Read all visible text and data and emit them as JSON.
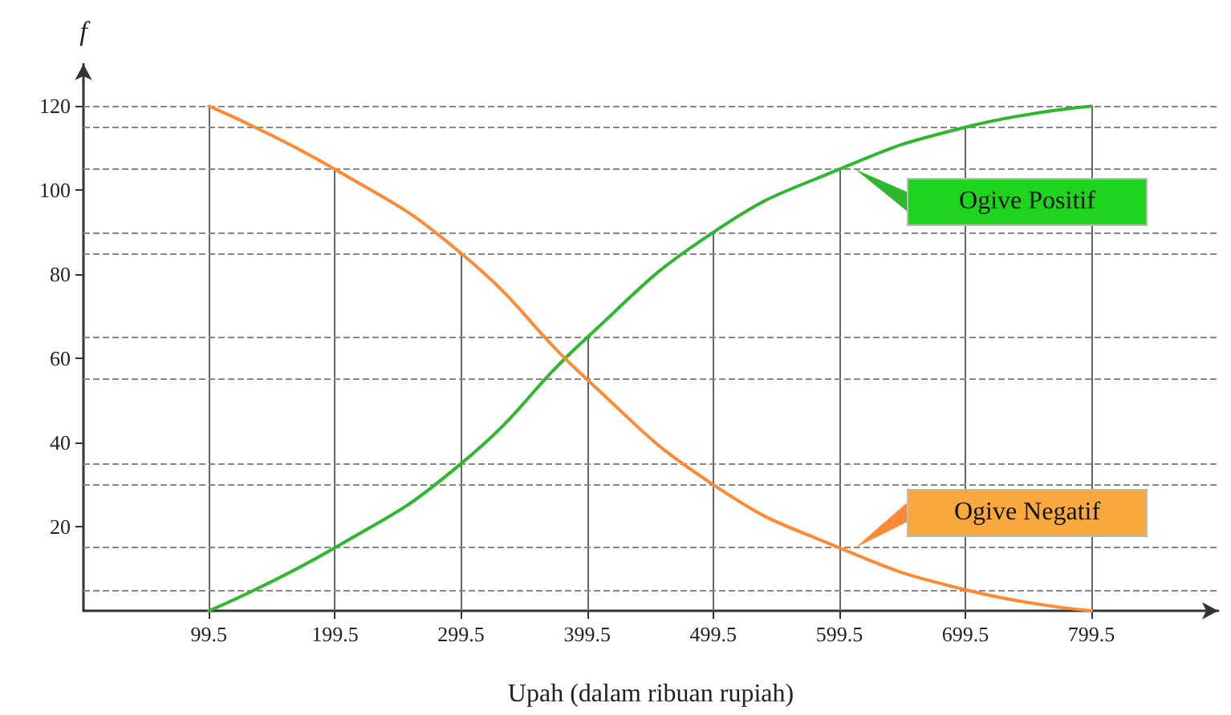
{
  "chart_data": {
    "type": "line",
    "xlabel": "Upah (dalam ribuan rupiah)",
    "ylabel": "f",
    "x": [
      99.5,
      199.5,
      299.5,
      399.5,
      499.5,
      599.5,
      699.5,
      799.5
    ],
    "series": [
      {
        "name": "Ogive Positif",
        "color": "#2eb82e",
        "values": [
          0,
          15,
          35,
          65,
          90,
          105,
          115,
          120
        ]
      },
      {
        "name": "Ogive Negatif",
        "color": "#ff8a33",
        "values": [
          120,
          105,
          85,
          55,
          30,
          15,
          5,
          0
        ]
      }
    ],
    "xlim": [
      0,
      900
    ],
    "xticks": [
      99.5,
      199.5,
      299.5,
      399.5,
      499.5,
      599.5,
      699.5,
      799.5
    ],
    "ylim": [
      0,
      130
    ],
    "yticks": [
      20,
      40,
      60,
      80,
      100,
      120
    ],
    "ref_lines": [
      {
        "axis": "x",
        "value": 99.5,
        "color": "#666666"
      },
      {
        "axis": "x",
        "value": 199.5,
        "color": "#666666"
      },
      {
        "axis": "x",
        "value": 299.5,
        "color": "#666666"
      },
      {
        "axis": "x",
        "value": 399.5,
        "color": "#666666"
      },
      {
        "axis": "x",
        "value": 499.5,
        "color": "#666666"
      },
      {
        "axis": "x",
        "value": 599.5,
        "color": "#666666"
      },
      {
        "axis": "x",
        "value": 699.5,
        "color": "#666666"
      },
      {
        "axis": "x",
        "value": 799.5,
        "color": "#666666"
      },
      {
        "axis": "y",
        "value": 5,
        "line_style": "dashed",
        "color": "#888888"
      },
      {
        "axis": "y",
        "value": 15,
        "line_style": "dashed",
        "color": "#888888"
      },
      {
        "axis": "y",
        "value": 30,
        "line_style": "dashed",
        "color": "#888888"
      },
      {
        "axis": "y",
        "value": 35,
        "line_style": "dashed",
        "color": "#888888"
      },
      {
        "axis": "y",
        "value": 55,
        "line_style": "dashed",
        "color": "#888888"
      },
      {
        "axis": "y",
        "value": 65,
        "line_style": "dashed",
        "color": "#888888"
      },
      {
        "axis": "y",
        "value": 85,
        "line_style": "dashed",
        "color": "#888888"
      },
      {
        "axis": "y",
        "value": 90,
        "line_style": "dashed",
        "color": "#888888"
      },
      {
        "axis": "y",
        "value": 105,
        "line_style": "dashed",
        "color": "#888888"
      },
      {
        "axis": "y",
        "value": 115,
        "line_style": "dashed",
        "color": "#888888"
      },
      {
        "axis": "y",
        "value": 120,
        "line_style": "dashed",
        "color": "#888888"
      }
    ],
    "marker": "none",
    "line_style": "solid",
    "grid": false,
    "legend": "right"
  }
}
